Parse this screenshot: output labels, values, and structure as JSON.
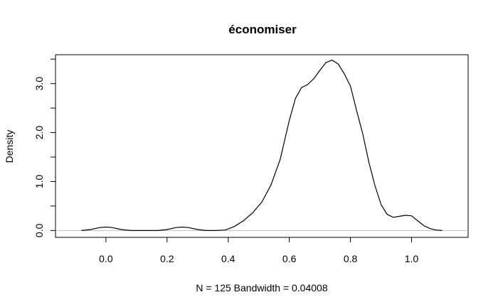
{
  "chart_data": {
    "type": "line",
    "title": "économiser",
    "xlabel": "N = 125   Bandwidth = 0.04008",
    "ylabel": "Density",
    "xlim": [
      -0.165,
      1.185
    ],
    "ylim": [
      -0.14,
      3.59
    ],
    "x_ticks": [
      0.0,
      0.2,
      0.4,
      0.6,
      0.8,
      1.0
    ],
    "x_tick_labels": [
      "0.0",
      "0.2",
      "0.4",
      "0.6",
      "0.8",
      "1.0"
    ],
    "y_ticks": [
      0.0,
      1.0,
      2.0,
      3.0
    ],
    "y_tick_labels": [
      "0.0",
      "1.0",
      "2.0",
      "3.0"
    ],
    "y_minor_ticks": [
      0.5,
      1.5,
      2.5,
      3.5
    ],
    "zero_line": true,
    "series": [
      {
        "name": "density",
        "x": [
          -0.08,
          -0.05,
          -0.02,
          0.0,
          0.02,
          0.05,
          0.08,
          0.1,
          0.13,
          0.17,
          0.2,
          0.23,
          0.25,
          0.27,
          0.3,
          0.33,
          0.36,
          0.39,
          0.42,
          0.45,
          0.48,
          0.51,
          0.54,
          0.57,
          0.6,
          0.62,
          0.64,
          0.66,
          0.68,
          0.7,
          0.72,
          0.74,
          0.76,
          0.78,
          0.8,
          0.82,
          0.84,
          0.86,
          0.88,
          0.9,
          0.92,
          0.94,
          0.96,
          0.98,
          1.0,
          1.02,
          1.04,
          1.06,
          1.08,
          1.1
        ],
        "y": [
          0.0,
          0.02,
          0.06,
          0.07,
          0.06,
          0.02,
          0.0,
          0.0,
          0.0,
          0.0,
          0.02,
          0.06,
          0.07,
          0.06,
          0.02,
          0.0,
          0.0,
          0.01,
          0.08,
          0.2,
          0.36,
          0.58,
          0.93,
          1.45,
          2.25,
          2.7,
          2.92,
          2.98,
          3.1,
          3.27,
          3.43,
          3.48,
          3.4,
          3.2,
          2.95,
          2.45,
          1.98,
          1.4,
          0.92,
          0.53,
          0.33,
          0.27,
          0.29,
          0.31,
          0.3,
          0.2,
          0.1,
          0.04,
          0.01,
          0.0
        ]
      }
    ]
  }
}
